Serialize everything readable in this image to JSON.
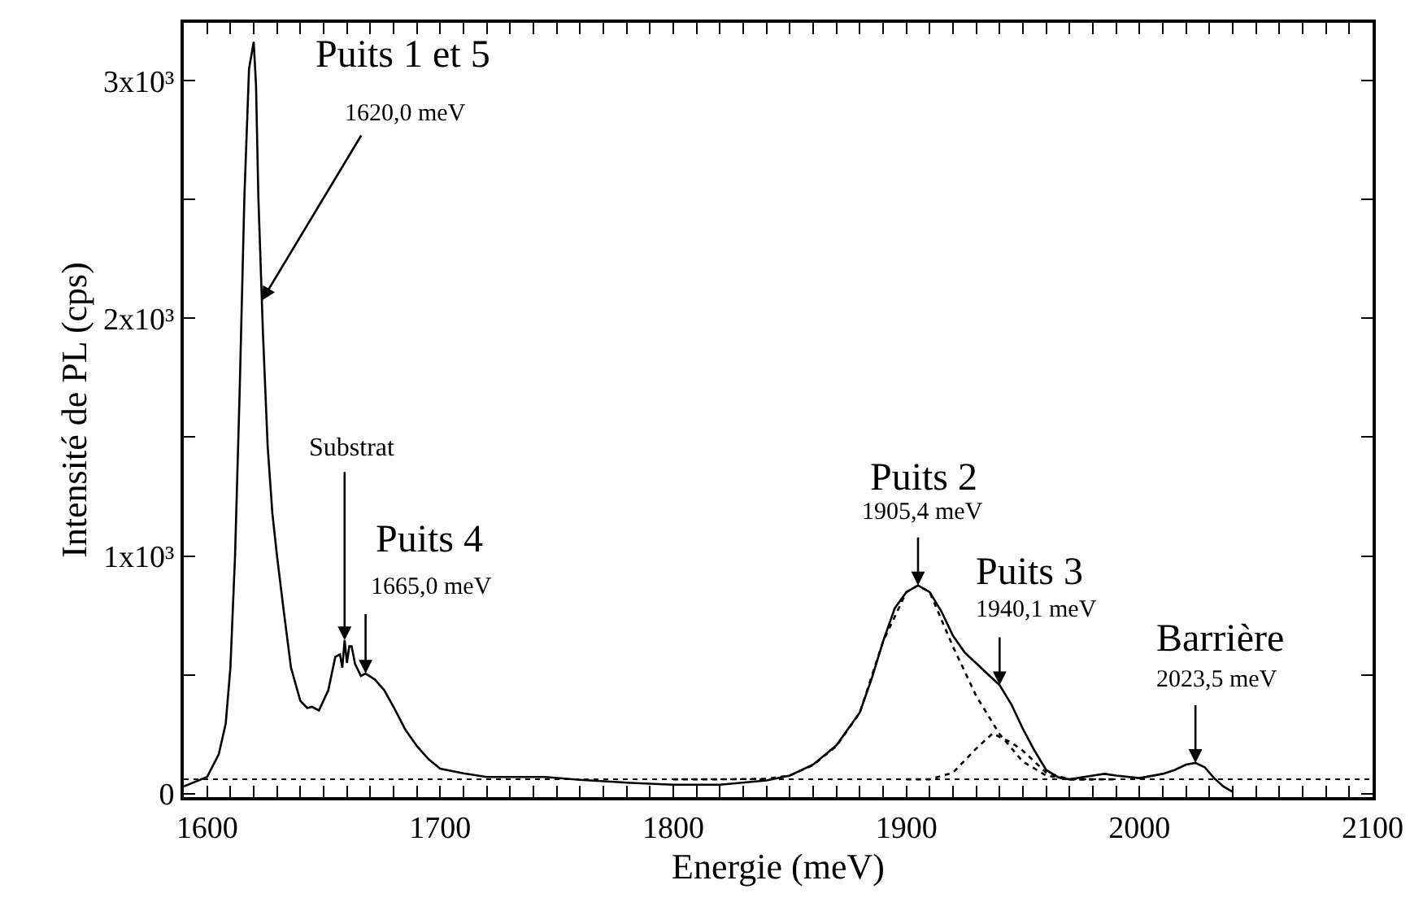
{
  "chart_data": {
    "type": "line",
    "xlabel": "Energie (meV)",
    "ylabel": "Intensité de PL (cps)",
    "xlim": [
      1590,
      2100
    ],
    "ylim": [
      -15,
      3244
    ],
    "xticks": [
      1600,
      1700,
      1800,
      1900,
      2000,
      2100,
      {
        "value": 1610,
        "label": null
      },
      {
        "value": 1620,
        "label": null
      },
      {
        "value": 1630,
        "label": null
      },
      {
        "value": 1640,
        "label": null
      },
      {
        "value": 1650,
        "label": null
      },
      {
        "value": 1660,
        "label": null
      },
      {
        "value": 1670,
        "label": null
      },
      {
        "value": 1680,
        "label": null
      },
      {
        "value": 1690,
        "label": null
      },
      {
        "value": 1710,
        "label": null
      },
      {
        "value": 1720,
        "label": null
      },
      {
        "value": 1730,
        "label": null
      },
      {
        "value": 1740,
        "label": null
      },
      {
        "value": 1750,
        "label": null
      },
      {
        "value": 1760,
        "label": null
      },
      {
        "value": 1770,
        "label": null
      },
      {
        "value": 1780,
        "label": null
      },
      {
        "value": 1790,
        "label": null
      },
      {
        "value": 1810,
        "label": null
      },
      {
        "value": 1820,
        "label": null
      },
      {
        "value": 1830,
        "label": null
      },
      {
        "value": 1840,
        "label": null
      },
      {
        "value": 1850,
        "label": null
      },
      {
        "value": 1860,
        "label": null
      },
      {
        "value": 1870,
        "label": null
      },
      {
        "value": 1880,
        "label": null
      },
      {
        "value": 1890,
        "label": null
      },
      {
        "value": 1910,
        "label": null
      },
      {
        "value": 1920,
        "label": null
      },
      {
        "value": 1930,
        "label": null
      },
      {
        "value": 1940,
        "label": null
      },
      {
        "value": 1950,
        "label": null
      },
      {
        "value": 1960,
        "label": null
      },
      {
        "value": 1970,
        "label": null
      },
      {
        "value": 1980,
        "label": null
      },
      {
        "value": 1990,
        "label": null
      },
      {
        "value": 2010,
        "label": null
      },
      {
        "value": 2020,
        "label": null
      },
      {
        "value": 2030,
        "label": null
      },
      {
        "value": 2040,
        "label": null
      },
      {
        "value": 2050,
        "label": null
      },
      {
        "value": 2060,
        "label": null
      },
      {
        "value": 2070,
        "label": null
      },
      {
        "value": 2080,
        "label": null
      },
      {
        "value": 2090,
        "label": null
      }
    ],
    "yticks": [
      0,
      {
        "value": 1000,
        "label": "1x10³"
      },
      {
        "value": 2000,
        "label": "2x10³"
      },
      {
        "value": 3000,
        "label": "3x10³"
      },
      {
        "value": 500,
        "label": null
      },
      {
        "value": 1500,
        "label": null
      },
      {
        "value": 2500,
        "label": null
      }
    ],
    "marker": "none",
    "series": [
      {
        "color": "#000000",
        "line_style": "solid",
        "x": [
          1590,
          1600,
          1605,
          1608,
          1610,
          1612,
          1614,
          1616,
          1618,
          1620,
          1621,
          1622,
          1624,
          1626,
          1628,
          1630,
          1633,
          1636,
          1640,
          1643,
          1645,
          1648,
          1652,
          1655,
          1657,
          1658,
          1659,
          1660,
          1661,
          1662,
          1663.5,
          1666,
          1668,
          1672,
          1676,
          1680,
          1685,
          1690,
          1695,
          1700,
          1710,
          1720,
          1745,
          1760,
          1780,
          1800,
          1820,
          1840,
          1850,
          1860,
          1870,
          1880,
          1885,
          1890,
          1895,
          1900,
          1905,
          1910,
          1915,
          1920,
          1925,
          1930,
          1935,
          1940,
          1945,
          1950,
          1955,
          1960,
          1965,
          1970,
          1980,
          1985,
          1990,
          2000,
          2010,
          2015,
          2020,
          2024,
          2028,
          2032,
          2036,
          2040
        ],
        "values": [
          30,
          70,
          165,
          295,
          530,
          1000,
          1700,
          2510,
          3050,
          3164,
          2980,
          2510,
          1930,
          1460,
          1180,
          1000,
          760,
          530,
          390,
          360,
          365,
          350,
          435,
          575,
          586,
          530,
          645,
          550,
          620,
          620,
          545,
          495,
          505,
          480,
          435,
          365,
          270,
          200,
          145,
          105,
          85,
          70,
          70,
          58,
          46,
          37,
          37,
          55,
          76,
          122,
          203,
          341,
          480,
          640,
          780,
          848,
          876,
          848,
          767,
          664,
          594,
          548,
          502,
          456,
          376,
          272,
          180,
          99,
          69,
          60,
          76,
          83,
          76,
          65,
          83,
          99,
          122,
          129,
          111,
          65,
          30,
          7
        ]
      },
      {
        "color": "#000000",
        "line_style": "dotted",
        "x": [
          1800,
          1820,
          1840,
          1850,
          1860,
          1870,
          1880,
          1890,
          1900,
          1905,
          1910,
          1920,
          1930,
          1940,
          1950,
          1960,
          1970,
          1990
        ],
        "values": [
          60,
          60,
          62,
          76,
          120,
          200,
          340,
          640,
          848,
          876,
          848,
          618,
          410,
          250,
          134,
          76,
          60,
          60
        ]
      },
      {
        "color": "#000000",
        "line_style": "dotted",
        "x": [
          1900,
          1910,
          1920,
          1930,
          1937,
          1945,
          1950,
          1960,
          1970,
          1980
        ],
        "values": [
          60,
          60,
          88,
          190,
          253,
          215,
          180,
          88,
          60,
          60
        ]
      }
    ],
    "ref_lines": [
      {
        "axis": "y",
        "value": 60,
        "color": "#000000",
        "line_style": "dotted"
      }
    ],
    "annotations": [
      "Puits 1 et 5",
      {
        "text": "1620,0 meV",
        "x": 1623.5,
        "y": 2075
      },
      {
        "text": "Substrat",
        "x": 1659,
        "y": 645
      },
      "Puits 4",
      {
        "text": "1665,0 meV",
        "x": 1668,
        "y": 505
      },
      "Puits 2",
      {
        "text": "1905,4 meV",
        "x": 1905,
        "y": 876
      },
      "Puits 3",
      {
        "text": "1940,1 meV",
        "x": 1940,
        "y": 456
      },
      "Barrière",
      {
        "text": "2023,5 meV",
        "x": 2024,
        "y": 129
      }
    ]
  }
}
